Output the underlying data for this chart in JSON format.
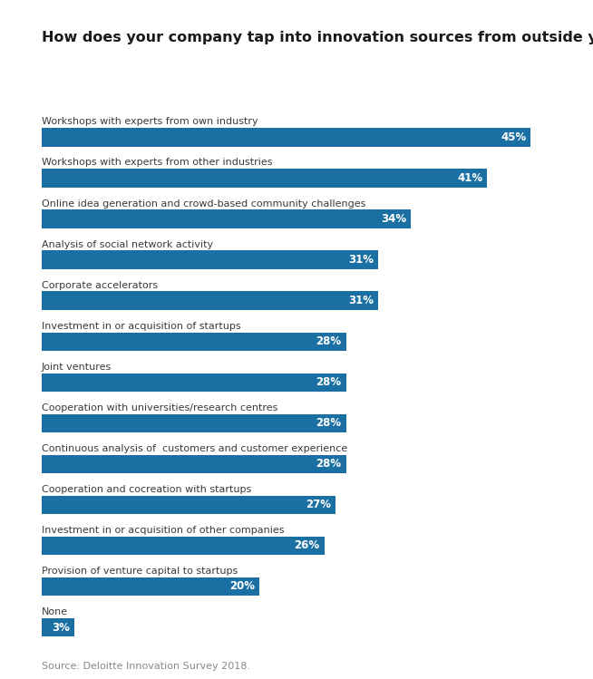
{
  "title": "How does your company tap into innovation sources from outside your company?",
  "categories": [
    "Workshops with experts from own industry",
    "Workshops with experts from other industries",
    "Online idea generation and crowd-based community challenges",
    "Analysis of social network activity",
    "Corporate accelerators",
    "Investment in or acquisition of startups",
    "Joint ventures",
    "Cooperation with universities/research centres",
    "Continuous analysis of  customers and customer experience",
    "Cooperation and cocreation with startups",
    "Investment in or acquisition of other companies",
    "Provision of venture capital to startups",
    "None"
  ],
  "values": [
    45,
    41,
    34,
    31,
    31,
    28,
    28,
    28,
    28,
    27,
    26,
    20,
    3
  ],
  "bar_color": "#1a6fa3",
  "label_color": "#ffffff",
  "title_color": "#1a1a1a",
  "category_color": "#3a3a3a",
  "source_color": "#888888",
  "source_text": "Source: Deloitte Innovation Survey 2018.",
  "background_color": "#ffffff",
  "title_fontsize": 11.5,
  "label_fontsize": 8.5,
  "category_fontsize": 8,
  "source_fontsize": 8,
  "bar_height": 0.45,
  "xlim": [
    0,
    48
  ]
}
